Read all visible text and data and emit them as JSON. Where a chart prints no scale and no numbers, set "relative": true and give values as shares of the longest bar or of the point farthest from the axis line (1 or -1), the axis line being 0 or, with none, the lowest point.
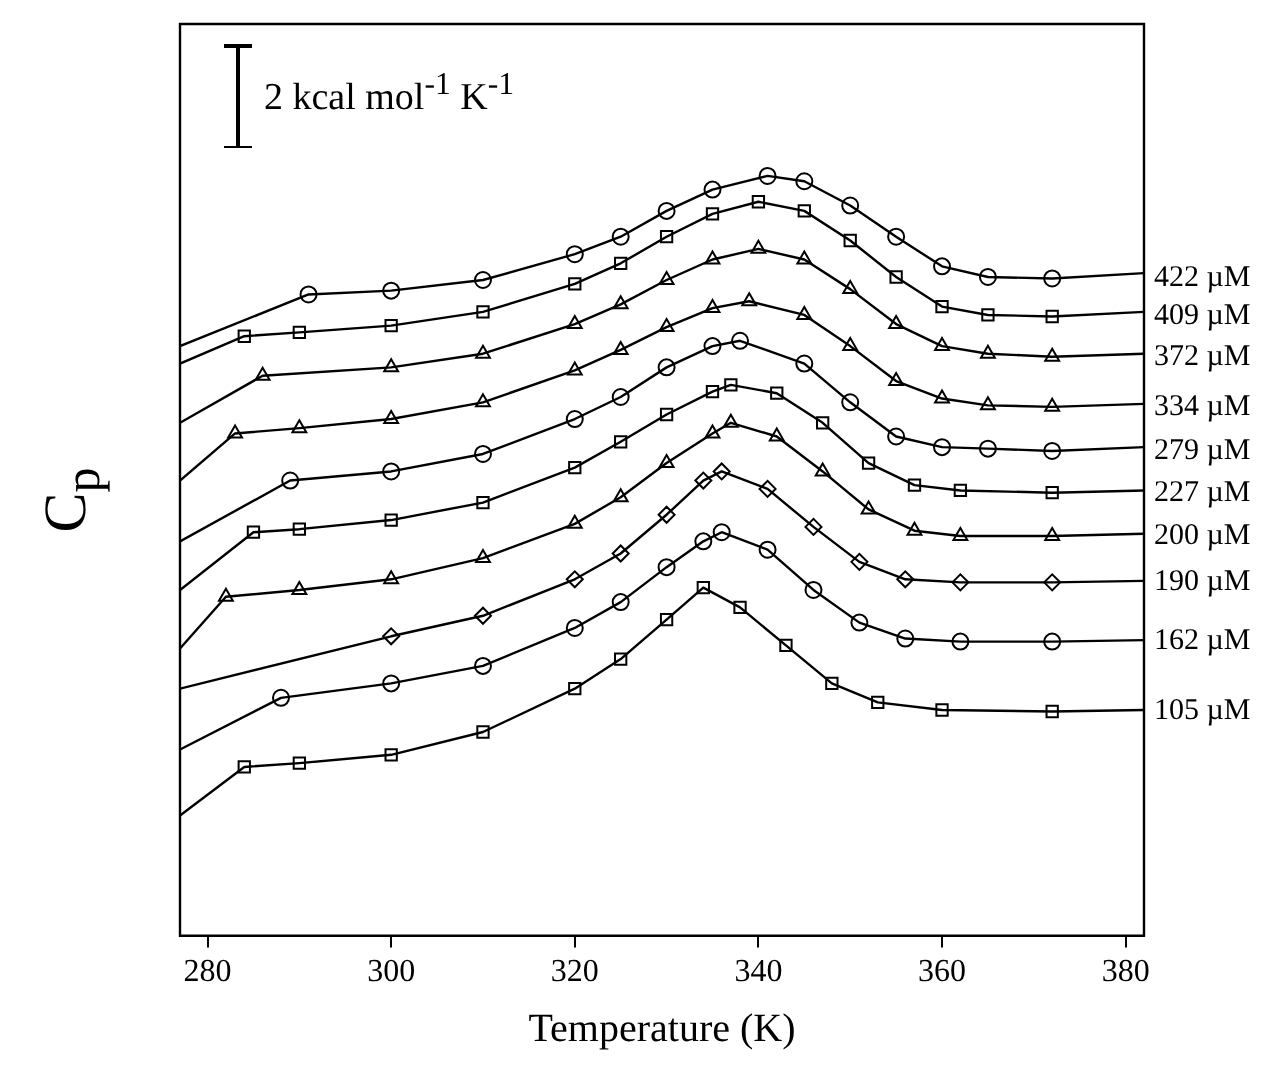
{
  "chart_data": {
    "type": "scatter",
    "xlabel": "Temperature (K)",
    "ylabel": "C$_{p}$",
    "relative": true,
    "xlim": [
      277,
      382
    ],
    "xticks": [
      280,
      300,
      320,
      340,
      360,
      380
    ],
    "grid": false,
    "legend": false,
    "annotations": [
      "2 kcal mol$^{-1}$ K$^{-1}$"
    ],
    "series": [
      {
        "name": "422 µM",
        "color": "#000000",
        "marker": "circle",
        "x": [
          291,
          300,
          310,
          320,
          325,
          330,
          335,
          341,
          345,
          350,
          355,
          360,
          365,
          372
        ],
        "values": [
          0.844,
          0.849,
          0.863,
          0.897,
          0.92,
          0.954,
          0.982,
          1,
          0.993,
          0.961,
          0.92,
          0.881,
          0.867,
          0.865
        ]
      },
      {
        "type": "line",
        "color": "#000000",
        "marker": "none",
        "x": [
          277,
          291,
          300,
          310,
          320,
          325,
          330,
          335,
          341,
          345,
          350,
          355,
          360,
          365,
          372,
          382
        ],
        "values": [
          0.776,
          0.844,
          0.849,
          0.863,
          0.897,
          0.92,
          0.954,
          0.982,
          1,
          0.993,
          0.961,
          0.92,
          0.881,
          0.867,
          0.865,
          0.872
        ]
      },
      {
        "name": "409 µM",
        "color": "#000000",
        "marker": "square",
        "x": [
          284,
          290,
          300,
          310,
          320,
          325,
          330,
          335,
          340,
          345,
          350,
          355,
          360,
          365,
          372
        ],
        "values": [
          0.789,
          0.794,
          0.803,
          0.821,
          0.858,
          0.885,
          0.92,
          0.95,
          0.966,
          0.954,
          0.915,
          0.867,
          0.828,
          0.817,
          0.815
        ]
      },
      {
        "type": "line",
        "color": "#000000",
        "marker": "none",
        "x": [
          277,
          284,
          290,
          300,
          310,
          320,
          325,
          330,
          335,
          340,
          345,
          350,
          355,
          360,
          365,
          372,
          382
        ],
        "values": [
          0.753,
          0.789,
          0.794,
          0.803,
          0.821,
          0.858,
          0.885,
          0.92,
          0.95,
          0.966,
          0.954,
          0.915,
          0.867,
          0.828,
          0.817,
          0.815,
          0.821
        ]
      },
      {
        "name": "372 µM",
        "color": "#000000",
        "marker": "triangle",
        "x": [
          286,
          300,
          310,
          320,
          325,
          330,
          335,
          340,
          345,
          350,
          355,
          360,
          365,
          372
        ],
        "values": [
          0.737,
          0.748,
          0.766,
          0.805,
          0.831,
          0.863,
          0.89,
          0.904,
          0.89,
          0.851,
          0.805,
          0.776,
          0.766,
          0.762
        ]
      },
      {
        "type": "line",
        "color": "#000000",
        "marker": "none",
        "x": [
          277,
          286,
          300,
          310,
          320,
          325,
          330,
          335,
          340,
          345,
          350,
          355,
          360,
          365,
          372,
          382
        ],
        "values": [
          0.675,
          0.737,
          0.748,
          0.766,
          0.805,
          0.831,
          0.863,
          0.89,
          0.904,
          0.89,
          0.851,
          0.805,
          0.776,
          0.766,
          0.762,
          0.766
        ]
      },
      {
        "name": "334 µM",
        "color": "#000000",
        "marker": "triangle",
        "x": [
          283,
          290,
          300,
          310,
          320,
          325,
          330,
          335,
          339,
          345,
          350,
          355,
          360,
          365,
          372
        ],
        "values": [
          0.661,
          0.668,
          0.68,
          0.702,
          0.744,
          0.771,
          0.801,
          0.826,
          0.835,
          0.817,
          0.776,
          0.73,
          0.707,
          0.698,
          0.696
        ]
      },
      {
        "type": "line",
        "color": "#000000",
        "marker": "none",
        "x": [
          277,
          283,
          290,
          300,
          310,
          320,
          325,
          330,
          335,
          339,
          345,
          350,
          355,
          360,
          365,
          372,
          382
        ],
        "values": [
          0.599,
          0.661,
          0.668,
          0.68,
          0.702,
          0.744,
          0.771,
          0.801,
          0.826,
          0.835,
          0.817,
          0.776,
          0.73,
          0.707,
          0.698,
          0.696,
          0.7
        ]
      },
      {
        "name": "279 µM",
        "color": "#000000",
        "marker": "circle",
        "x": [
          289,
          300,
          310,
          320,
          325,
          330,
          335,
          338,
          345,
          350,
          355,
          360,
          365,
          372
        ],
        "values": [
          0.599,
          0.611,
          0.634,
          0.68,
          0.709,
          0.748,
          0.776,
          0.783,
          0.753,
          0.702,
          0.657,
          0.643,
          0.641,
          0.638
        ]
      },
      {
        "type": "line",
        "color": "#000000",
        "marker": "none",
        "x": [
          277,
          289,
          300,
          310,
          320,
          325,
          330,
          335,
          338,
          345,
          350,
          355,
          360,
          365,
          372,
          382
        ],
        "values": [
          0.519,
          0.599,
          0.611,
          0.634,
          0.68,
          0.709,
          0.748,
          0.776,
          0.783,
          0.753,
          0.702,
          0.657,
          0.643,
          0.641,
          0.638,
          0.643
        ]
      },
      {
        "name": "227 µM",
        "color": "#000000",
        "marker": "square",
        "x": [
          285,
          290,
          300,
          310,
          320,
          325,
          330,
          335,
          337,
          342,
          347,
          352,
          357,
          362,
          372
        ],
        "values": [
          0.531,
          0.535,
          0.547,
          0.57,
          0.616,
          0.65,
          0.686,
          0.716,
          0.725,
          0.714,
          0.675,
          0.622,
          0.593,
          0.586,
          0.583
        ]
      },
      {
        "type": "line",
        "color": "#000000",
        "marker": "none",
        "x": [
          277,
          285,
          290,
          300,
          310,
          320,
          325,
          330,
          335,
          337,
          342,
          347,
          352,
          357,
          362,
          372,
          382
        ],
        "values": [
          0.455,
          0.531,
          0.535,
          0.547,
          0.57,
          0.616,
          0.65,
          0.686,
          0.716,
          0.725,
          0.714,
          0.675,
          0.622,
          0.593,
          0.586,
          0.583,
          0.586
        ]
      },
      {
        "name": "200 µM",
        "color": "#000000",
        "marker": "triangle",
        "x": [
          282,
          290,
          300,
          310,
          320,
          325,
          330,
          335,
          337,
          342,
          347,
          352,
          357,
          362,
          372
        ],
        "values": [
          0.446,
          0.455,
          0.469,
          0.497,
          0.542,
          0.577,
          0.622,
          0.661,
          0.675,
          0.657,
          0.611,
          0.561,
          0.533,
          0.526,
          0.526
        ]
      },
      {
        "type": "line",
        "color": "#000000",
        "marker": "none",
        "x": [
          277,
          282,
          290,
          300,
          310,
          320,
          325,
          330,
          335,
          337,
          342,
          347,
          352,
          357,
          362,
          372,
          382
        ],
        "values": [
          0.378,
          0.446,
          0.455,
          0.469,
          0.497,
          0.542,
          0.577,
          0.622,
          0.661,
          0.675,
          0.657,
          0.611,
          0.561,
          0.533,
          0.526,
          0.526,
          0.529
        ]
      },
      {
        "name": "190 µM",
        "color": "#000000",
        "marker": "diamond",
        "x": [
          300,
          310,
          320,
          325,
          330,
          334,
          336,
          341,
          346,
          351,
          356,
          362,
          372
        ],
        "values": [
          0.394,
          0.421,
          0.469,
          0.503,
          0.554,
          0.599,
          0.611,
          0.588,
          0.538,
          0.492,
          0.469,
          0.465,
          0.465
        ]
      },
      {
        "type": "line",
        "color": "#000000",
        "marker": "none",
        "x": [
          277,
          300,
          310,
          320,
          325,
          330,
          334,
          336,
          341,
          346,
          351,
          356,
          362,
          372,
          382
        ],
        "values": [
          0.325,
          0.394,
          0.421,
          0.469,
          0.503,
          0.554,
          0.599,
          0.611,
          0.588,
          0.538,
          0.492,
          0.469,
          0.465,
          0.465,
          0.467
        ]
      },
      {
        "name": "162 µM",
        "color": "#000000",
        "marker": "circle",
        "x": [
          288,
          300,
          310,
          320,
          325,
          330,
          334,
          336,
          341,
          346,
          351,
          356,
          362,
          372
        ],
        "values": [
          0.313,
          0.332,
          0.355,
          0.405,
          0.439,
          0.485,
          0.519,
          0.531,
          0.508,
          0.455,
          0.412,
          0.391,
          0.387,
          0.387
        ]
      },
      {
        "type": "line",
        "color": "#000000",
        "marker": "none",
        "x": [
          277,
          288,
          300,
          310,
          320,
          325,
          330,
          334,
          336,
          341,
          346,
          351,
          356,
          362,
          372,
          382
        ],
        "values": [
          0.245,
          0.313,
          0.332,
          0.355,
          0.405,
          0.439,
          0.485,
          0.519,
          0.531,
          0.508,
          0.455,
          0.412,
          0.391,
          0.387,
          0.387,
          0.389
        ]
      },
      {
        "name": "105 µM",
        "color": "#000000",
        "marker": "square",
        "x": [
          284,
          290,
          300,
          310,
          320,
          325,
          330,
          334,
          338,
          343,
          348,
          353,
          360,
          372
        ],
        "values": [
          0.222,
          0.227,
          0.238,
          0.268,
          0.325,
          0.364,
          0.416,
          0.458,
          0.432,
          0.382,
          0.332,
          0.307,
          0.297,
          0.295
        ]
      },
      {
        "type": "line",
        "color": "#000000",
        "marker": "none",
        "x": [
          277,
          284,
          290,
          300,
          310,
          320,
          325,
          330,
          334,
          338,
          343,
          348,
          353,
          360,
          372,
          382
        ],
        "values": [
          0.158,
          0.222,
          0.227,
          0.238,
          0.268,
          0.325,
          0.364,
          0.416,
          0.458,
          0.432,
          0.382,
          0.332,
          0.307,
          0.297,
          0.295,
          0.297
        ]
      }
    ]
  }
}
